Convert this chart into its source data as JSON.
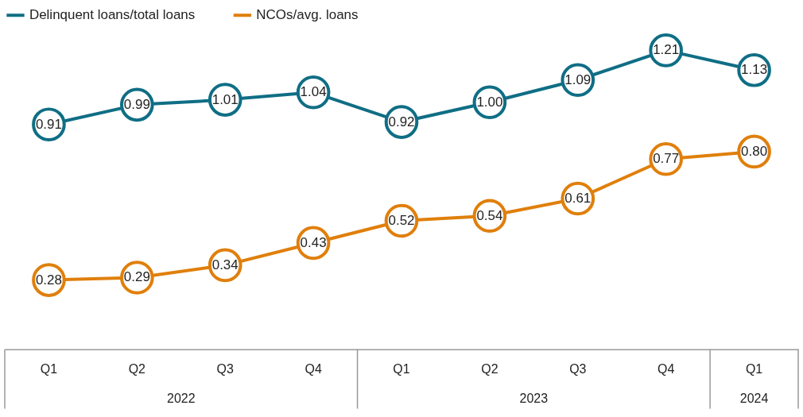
{
  "chart_data": {
    "type": "line",
    "categories": [
      "Q1",
      "Q2",
      "Q3",
      "Q4",
      "Q1",
      "Q2",
      "Q3",
      "Q4",
      "Q1"
    ],
    "series": [
      {
        "name": "Delinquent loans/total loans",
        "color": "#0f6e85",
        "values": [
          0.91,
          0.99,
          1.01,
          1.04,
          0.92,
          1.0,
          1.09,
          1.21,
          1.13
        ],
        "value_labels": [
          "0.91",
          "0.99",
          "1.01",
          "1.04",
          "0.92",
          "1.00",
          "1.09",
          "1.21",
          "1.13"
        ]
      },
      {
        "name": "NCOs/avg. loans",
        "color": "#e07f0b",
        "values": [
          0.28,
          0.29,
          0.34,
          0.43,
          0.52,
          0.54,
          0.61,
          0.77,
          0.8
        ],
        "value_labels": [
          "0.28",
          "0.29",
          "0.34",
          "0.43",
          "0.52",
          "0.54",
          "0.61",
          "0.77",
          "0.80"
        ]
      }
    ],
    "annotations": [
      "2022",
      "2023",
      "2024"
    ],
    "tick_labels": "x",
    "grid": false,
    "legend": "top",
    "marker": "circle",
    "line_style": "solid"
  }
}
